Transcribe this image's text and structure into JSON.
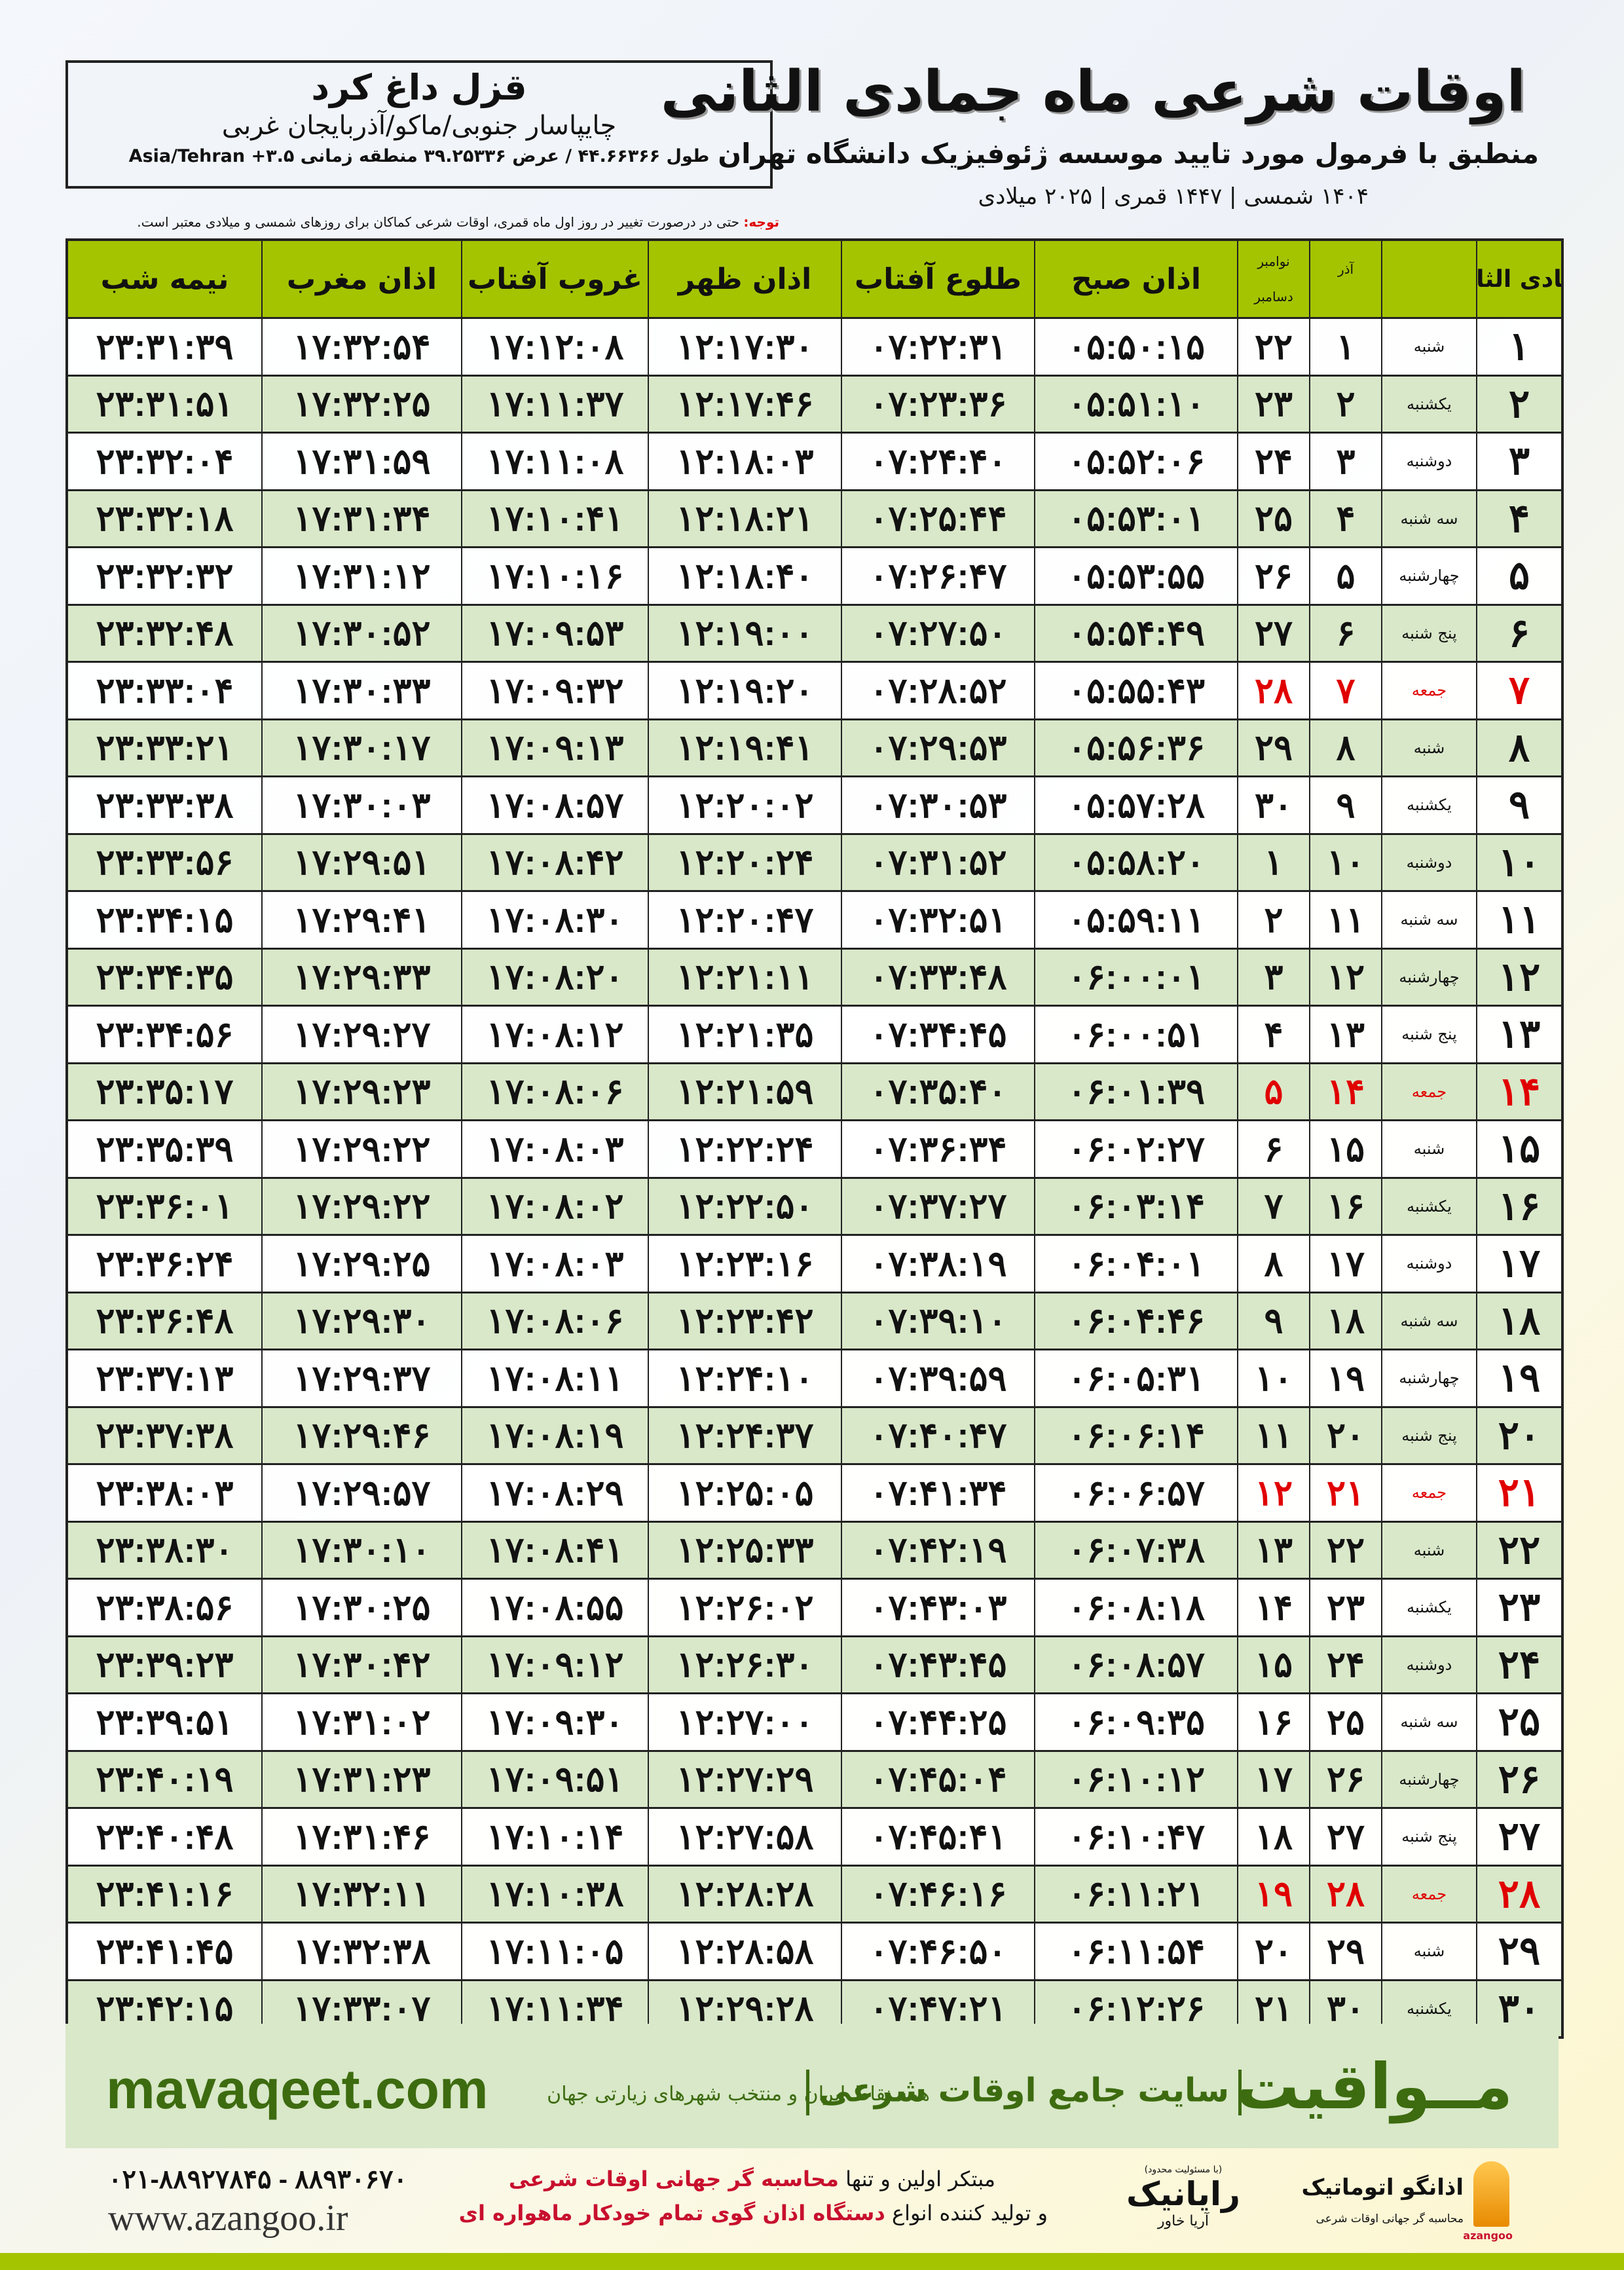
{
  "location": {
    "city": "قزل داغ کرد",
    "region": "چایپاسار جنوبی/ماکو/آذربایجان غربی",
    "coords": "طول ۴۴.۶۶۳۶۶ / عرض ۳۹.۲۵۳۳۶ منطقه زمانی ۳.۵+ Asia/Tehran"
  },
  "header": {
    "title": "اوقات شرعی ماه جمادی الثانی",
    "subtitle": "منطبق با فرمول مورد تایید موسسه ژئوفیزیک دانشگاه تهران",
    "years": "۱۴۰۴ شمسی | ۱۴۴۷ قمری | ۲۰۲۵ میلادی",
    "note_label": "توجه:",
    "note_text": " حتی در درصورت تغییر در روز اول ماه قمری، اوقات شرعی کماکان برای روزهای شمسی و میلادی معتبر است."
  },
  "columns": {
    "day": "جمادی الثانی",
    "azar": "آذر",
    "gregorian_top": "نوامبر",
    "gregorian_bottom": "دسامبر",
    "fajr": "اذان صبح",
    "sunrise": "طلوع آفتاب",
    "dhuhr": "اذان ظهر",
    "sunset": "غروب آفتاب",
    "maghrib": "اذان مغرب",
    "midnight": "نیمه شب"
  },
  "colors": {
    "header_green": "#a5c400",
    "row_alt": "#d9e8c9",
    "friday_red": "#e00000",
    "brand_green": "#3d6b10"
  },
  "rows": [
    {
      "day": "۱",
      "weekday": "شنبه",
      "azar": "۱",
      "greg": "۲۲",
      "fajr": "۰۵:۵۰:۱۵",
      "sunrise": "۰۷:۲۲:۳۱",
      "dhuhr": "۱۲:۱۷:۳۰",
      "sunset": "۱۷:۱۲:۰۸",
      "maghrib": "۱۷:۳۲:۵۴",
      "midnight": "۲۳:۳۱:۳۹"
    },
    {
      "day": "۲",
      "weekday": "یکشنبه",
      "azar": "۲",
      "greg": "۲۳",
      "fajr": "۰۵:۵۱:۱۰",
      "sunrise": "۰۷:۲۳:۳۶",
      "dhuhr": "۱۲:۱۷:۴۶",
      "sunset": "۱۷:۱۱:۳۷",
      "maghrib": "۱۷:۳۲:۲۵",
      "midnight": "۲۳:۳۱:۵۱"
    },
    {
      "day": "۳",
      "weekday": "دوشنبه",
      "azar": "۳",
      "greg": "۲۴",
      "fajr": "۰۵:۵۲:۰۶",
      "sunrise": "۰۷:۲۴:۴۰",
      "dhuhr": "۱۲:۱۸:۰۳",
      "sunset": "۱۷:۱۱:۰۸",
      "maghrib": "۱۷:۳۱:۵۹",
      "midnight": "۲۳:۳۲:۰۴"
    },
    {
      "day": "۴",
      "weekday": "سه شنبه",
      "azar": "۴",
      "greg": "۲۵",
      "fajr": "۰۵:۵۳:۰۱",
      "sunrise": "۰۷:۲۵:۴۴",
      "dhuhr": "۱۲:۱۸:۲۱",
      "sunset": "۱۷:۱۰:۴۱",
      "maghrib": "۱۷:۳۱:۳۴",
      "midnight": "۲۳:۳۲:۱۸"
    },
    {
      "day": "۵",
      "weekday": "چهارشنبه",
      "azar": "۵",
      "greg": "۲۶",
      "fajr": "۰۵:۵۳:۵۵",
      "sunrise": "۰۷:۲۶:۴۷",
      "dhuhr": "۱۲:۱۸:۴۰",
      "sunset": "۱۷:۱۰:۱۶",
      "maghrib": "۱۷:۳۱:۱۲",
      "midnight": "۲۳:۳۲:۳۲"
    },
    {
      "day": "۶",
      "weekday": "پنج شنبه",
      "azar": "۶",
      "greg": "۲۷",
      "fajr": "۰۵:۵۴:۴۹",
      "sunrise": "۰۷:۲۷:۵۰",
      "dhuhr": "۱۲:۱۹:۰۰",
      "sunset": "۱۷:۰۹:۵۳",
      "maghrib": "۱۷:۳۰:۵۲",
      "midnight": "۲۳:۳۲:۴۸"
    },
    {
      "day": "۷",
      "weekday": "جمعه",
      "azar": "۷",
      "greg": "۲۸",
      "fajr": "۰۵:۵۵:۴۳",
      "sunrise": "۰۷:۲۸:۵۲",
      "dhuhr": "۱۲:۱۹:۲۰",
      "sunset": "۱۷:۰۹:۳۲",
      "maghrib": "۱۷:۳۰:۳۳",
      "midnight": "۲۳:۳۳:۰۴",
      "friday": true
    },
    {
      "day": "۸",
      "weekday": "شنبه",
      "azar": "۸",
      "greg": "۲۹",
      "fajr": "۰۵:۵۶:۳۶",
      "sunrise": "۰۷:۲۹:۵۳",
      "dhuhr": "۱۲:۱۹:۴۱",
      "sunset": "۱۷:۰۹:۱۳",
      "maghrib": "۱۷:۳۰:۱۷",
      "midnight": "۲۳:۳۳:۲۱"
    },
    {
      "day": "۹",
      "weekday": "یکشنبه",
      "azar": "۹",
      "greg": "۳۰",
      "fajr": "۰۵:۵۷:۲۸",
      "sunrise": "۰۷:۳۰:۵۳",
      "dhuhr": "۱۲:۲۰:۰۲",
      "sunset": "۱۷:۰۸:۵۷",
      "maghrib": "۱۷:۳۰:۰۳",
      "midnight": "۲۳:۳۳:۳۸"
    },
    {
      "day": "۱۰",
      "weekday": "دوشنبه",
      "azar": "۱۰",
      "greg": "۱",
      "fajr": "۰۵:۵۸:۲۰",
      "sunrise": "۰۷:۳۱:۵۲",
      "dhuhr": "۱۲:۲۰:۲۴",
      "sunset": "۱۷:۰۸:۴۲",
      "maghrib": "۱۷:۲۹:۵۱",
      "midnight": "۲۳:۳۳:۵۶"
    },
    {
      "day": "۱۱",
      "weekday": "سه شنبه",
      "azar": "۱۱",
      "greg": "۲",
      "fajr": "۰۵:۵۹:۱۱",
      "sunrise": "۰۷:۳۲:۵۱",
      "dhuhr": "۱۲:۲۰:۴۷",
      "sunset": "۱۷:۰۸:۳۰",
      "maghrib": "۱۷:۲۹:۴۱",
      "midnight": "۲۳:۳۴:۱۵"
    },
    {
      "day": "۱۲",
      "weekday": "چهارشنبه",
      "azar": "۱۲",
      "greg": "۳",
      "fajr": "۰۶:۰۰:۰۱",
      "sunrise": "۰۷:۳۳:۴۸",
      "dhuhr": "۱۲:۲۱:۱۱",
      "sunset": "۱۷:۰۸:۲۰",
      "maghrib": "۱۷:۲۹:۳۳",
      "midnight": "۲۳:۳۴:۳۵"
    },
    {
      "day": "۱۳",
      "weekday": "پنج شنبه",
      "azar": "۱۳",
      "greg": "۴",
      "fajr": "۰۶:۰۰:۵۱",
      "sunrise": "۰۷:۳۴:۴۵",
      "dhuhr": "۱۲:۲۱:۳۵",
      "sunset": "۱۷:۰۸:۱۲",
      "maghrib": "۱۷:۲۹:۲۷",
      "midnight": "۲۳:۳۴:۵۶"
    },
    {
      "day": "۱۴",
      "weekday": "جمعه",
      "azar": "۱۴",
      "greg": "۵",
      "fajr": "۰۶:۰۱:۳۹",
      "sunrise": "۰۷:۳۵:۴۰",
      "dhuhr": "۱۲:۲۱:۵۹",
      "sunset": "۱۷:۰۸:۰۶",
      "maghrib": "۱۷:۲۹:۲۳",
      "midnight": "۲۳:۳۵:۱۷",
      "friday": true
    },
    {
      "day": "۱۵",
      "weekday": "شنبه",
      "azar": "۱۵",
      "greg": "۶",
      "fajr": "۰۶:۰۲:۲۷",
      "sunrise": "۰۷:۳۶:۳۴",
      "dhuhr": "۱۲:۲۲:۲۴",
      "sunset": "۱۷:۰۸:۰۳",
      "maghrib": "۱۷:۲۹:۲۲",
      "midnight": "۲۳:۳۵:۳۹"
    },
    {
      "day": "۱۶",
      "weekday": "یکشنبه",
      "azar": "۱۶",
      "greg": "۷",
      "fajr": "۰۶:۰۳:۱۴",
      "sunrise": "۰۷:۳۷:۲۷",
      "dhuhr": "۱۲:۲۲:۵۰",
      "sunset": "۱۷:۰۸:۰۲",
      "maghrib": "۱۷:۲۹:۲۲",
      "midnight": "۲۳:۳۶:۰۱"
    },
    {
      "day": "۱۷",
      "weekday": "دوشنبه",
      "azar": "۱۷",
      "greg": "۸",
      "fajr": "۰۶:۰۴:۰۱",
      "sunrise": "۰۷:۳۸:۱۹",
      "dhuhr": "۱۲:۲۳:۱۶",
      "sunset": "۱۷:۰۸:۰۳",
      "maghrib": "۱۷:۲۹:۲۵",
      "midnight": "۲۳:۳۶:۲۴"
    },
    {
      "day": "۱۸",
      "weekday": "سه شنبه",
      "azar": "۱۸",
      "greg": "۹",
      "fajr": "۰۶:۰۴:۴۶",
      "sunrise": "۰۷:۳۹:۱۰",
      "dhuhr": "۱۲:۲۳:۴۲",
      "sunset": "۱۷:۰۸:۰۶",
      "maghrib": "۱۷:۲۹:۳۰",
      "midnight": "۲۳:۳۶:۴۸"
    },
    {
      "day": "۱۹",
      "weekday": "چهارشنبه",
      "azar": "۱۹",
      "greg": "۱۰",
      "fajr": "۰۶:۰۵:۳۱",
      "sunrise": "۰۷:۳۹:۵۹",
      "dhuhr": "۱۲:۲۴:۱۰",
      "sunset": "۱۷:۰۸:۱۱",
      "maghrib": "۱۷:۲۹:۳۷",
      "midnight": "۲۳:۳۷:۱۳"
    },
    {
      "day": "۲۰",
      "weekday": "پنج شنبه",
      "azar": "۲۰",
      "greg": "۱۱",
      "fajr": "۰۶:۰۶:۱۴",
      "sunrise": "۰۷:۴۰:۴۷",
      "dhuhr": "۱۲:۲۴:۳۷",
      "sunset": "۱۷:۰۸:۱۹",
      "maghrib": "۱۷:۲۹:۴۶",
      "midnight": "۲۳:۳۷:۳۸"
    },
    {
      "day": "۲۱",
      "weekday": "جمعه",
      "azar": "۲۱",
      "greg": "۱۲",
      "fajr": "۰۶:۰۶:۵۷",
      "sunrise": "۰۷:۴۱:۳۴",
      "dhuhr": "۱۲:۲۵:۰۵",
      "sunset": "۱۷:۰۸:۲۹",
      "maghrib": "۱۷:۲۹:۵۷",
      "midnight": "۲۳:۳۸:۰۳",
      "friday": true
    },
    {
      "day": "۲۲",
      "weekday": "شنبه",
      "azar": "۲۲",
      "greg": "۱۳",
      "fajr": "۰۶:۰۷:۳۸",
      "sunrise": "۰۷:۴۲:۱۹",
      "dhuhr": "۱۲:۲۵:۳۳",
      "sunset": "۱۷:۰۸:۴۱",
      "maghrib": "۱۷:۳۰:۱۰",
      "midnight": "۲۳:۳۸:۳۰"
    },
    {
      "day": "۲۳",
      "weekday": "یکشنبه",
      "azar": "۲۳",
      "greg": "۱۴",
      "fajr": "۰۶:۰۸:۱۸",
      "sunrise": "۰۷:۴۳:۰۳",
      "dhuhr": "۱۲:۲۶:۰۲",
      "sunset": "۱۷:۰۸:۵۵",
      "maghrib": "۱۷:۳۰:۲۵",
      "midnight": "۲۳:۳۸:۵۶"
    },
    {
      "day": "۲۴",
      "weekday": "دوشنبه",
      "azar": "۲۴",
      "greg": "۱۵",
      "fajr": "۰۶:۰۸:۵۷",
      "sunrise": "۰۷:۴۳:۴۵",
      "dhuhr": "۱۲:۲۶:۳۰",
      "sunset": "۱۷:۰۹:۱۲",
      "maghrib": "۱۷:۳۰:۴۲",
      "midnight": "۲۳:۳۹:۲۳"
    },
    {
      "day": "۲۵",
      "weekday": "سه شنبه",
      "azar": "۲۵",
      "greg": "۱۶",
      "fajr": "۰۶:۰۹:۳۵",
      "sunrise": "۰۷:۴۴:۲۵",
      "dhuhr": "۱۲:۲۷:۰۰",
      "sunset": "۱۷:۰۹:۳۰",
      "maghrib": "۱۷:۳۱:۰۲",
      "midnight": "۲۳:۳۹:۵۱"
    },
    {
      "day": "۲۶",
      "weekday": "چهارشنبه",
      "azar": "۲۶",
      "greg": "۱۷",
      "fajr": "۰۶:۱۰:۱۲",
      "sunrise": "۰۷:۴۵:۰۴",
      "dhuhr": "۱۲:۲۷:۲۹",
      "sunset": "۱۷:۰۹:۵۱",
      "maghrib": "۱۷:۳۱:۲۳",
      "midnight": "۲۳:۴۰:۱۹"
    },
    {
      "day": "۲۷",
      "weekday": "پنج شنبه",
      "azar": "۲۷",
      "greg": "۱۸",
      "fajr": "۰۶:۱۰:۴۷",
      "sunrise": "۰۷:۴۵:۴۱",
      "dhuhr": "۱۲:۲۷:۵۸",
      "sunset": "۱۷:۱۰:۱۴",
      "maghrib": "۱۷:۳۱:۴۶",
      "midnight": "۲۳:۴۰:۴۸"
    },
    {
      "day": "۲۸",
      "weekday": "جمعه",
      "azar": "۲۸",
      "greg": "۱۹",
      "fajr": "۰۶:۱۱:۲۱",
      "sunrise": "۰۷:۴۶:۱۶",
      "dhuhr": "۱۲:۲۸:۲۸",
      "sunset": "۱۷:۱۰:۳۸",
      "maghrib": "۱۷:۳۲:۱۱",
      "midnight": "۲۳:۴۱:۱۶",
      "friday": true
    },
    {
      "day": "۲۹",
      "weekday": "شنبه",
      "azar": "۲۹",
      "greg": "۲۰",
      "fajr": "۰۶:۱۱:۵۴",
      "sunrise": "۰۷:۴۶:۵۰",
      "dhuhr": "۱۲:۲۸:۵۸",
      "sunset": "۱۷:۱۱:۰۵",
      "maghrib": "۱۷:۳۲:۳۸",
      "midnight": "۲۳:۴۱:۴۵"
    },
    {
      "day": "۳۰",
      "weekday": "یکشنبه",
      "azar": "۳۰",
      "greg": "۲۱",
      "fajr": "۰۶:۱۲:۲۶",
      "sunrise": "۰۷:۴۷:۲۱",
      "dhuhr": "۱۲:۲۹:۲۸",
      "sunset": "۱۷:۱۱:۳۴",
      "maghrib": "۱۷:۳۳:۰۷",
      "midnight": "۲۳:۴۲:۱۵"
    }
  ],
  "banner": {
    "brand": "مــواقیت",
    "tagline": "سایت جامع اوقات شرعی",
    "tagline2": "همه نقاط ایران و منتخب شهرهای زیارتی جهان",
    "site": "mavaqeet.com"
  },
  "footer": {
    "phones": "۰۲۱-۸۸۹۲۷۸۴۵ - ۸۸۹۳۰۶۷۰",
    "web": "www.azangoo.ir",
    "promo1_a": "مبتکر اولین و تنها ",
    "promo1_b": "محاسبه گر جهانی اوقات شرعی",
    "promo2_a": "و تولید کننده انواع ",
    "promo2_b": "دستگاه اذان گوی تمام خودکار ماهواره ای",
    "rayanik_small": "(با مسئولیت محدود)",
    "rayanik_name": "رایانیک",
    "rayanik_sub": "آریا خاور",
    "azangoo_name": "اذانگو اتوماتیک",
    "azangoo_sub": "محاسبه گر جهانی اوقات شرعی",
    "azangoo_latin": "azangoo"
  }
}
